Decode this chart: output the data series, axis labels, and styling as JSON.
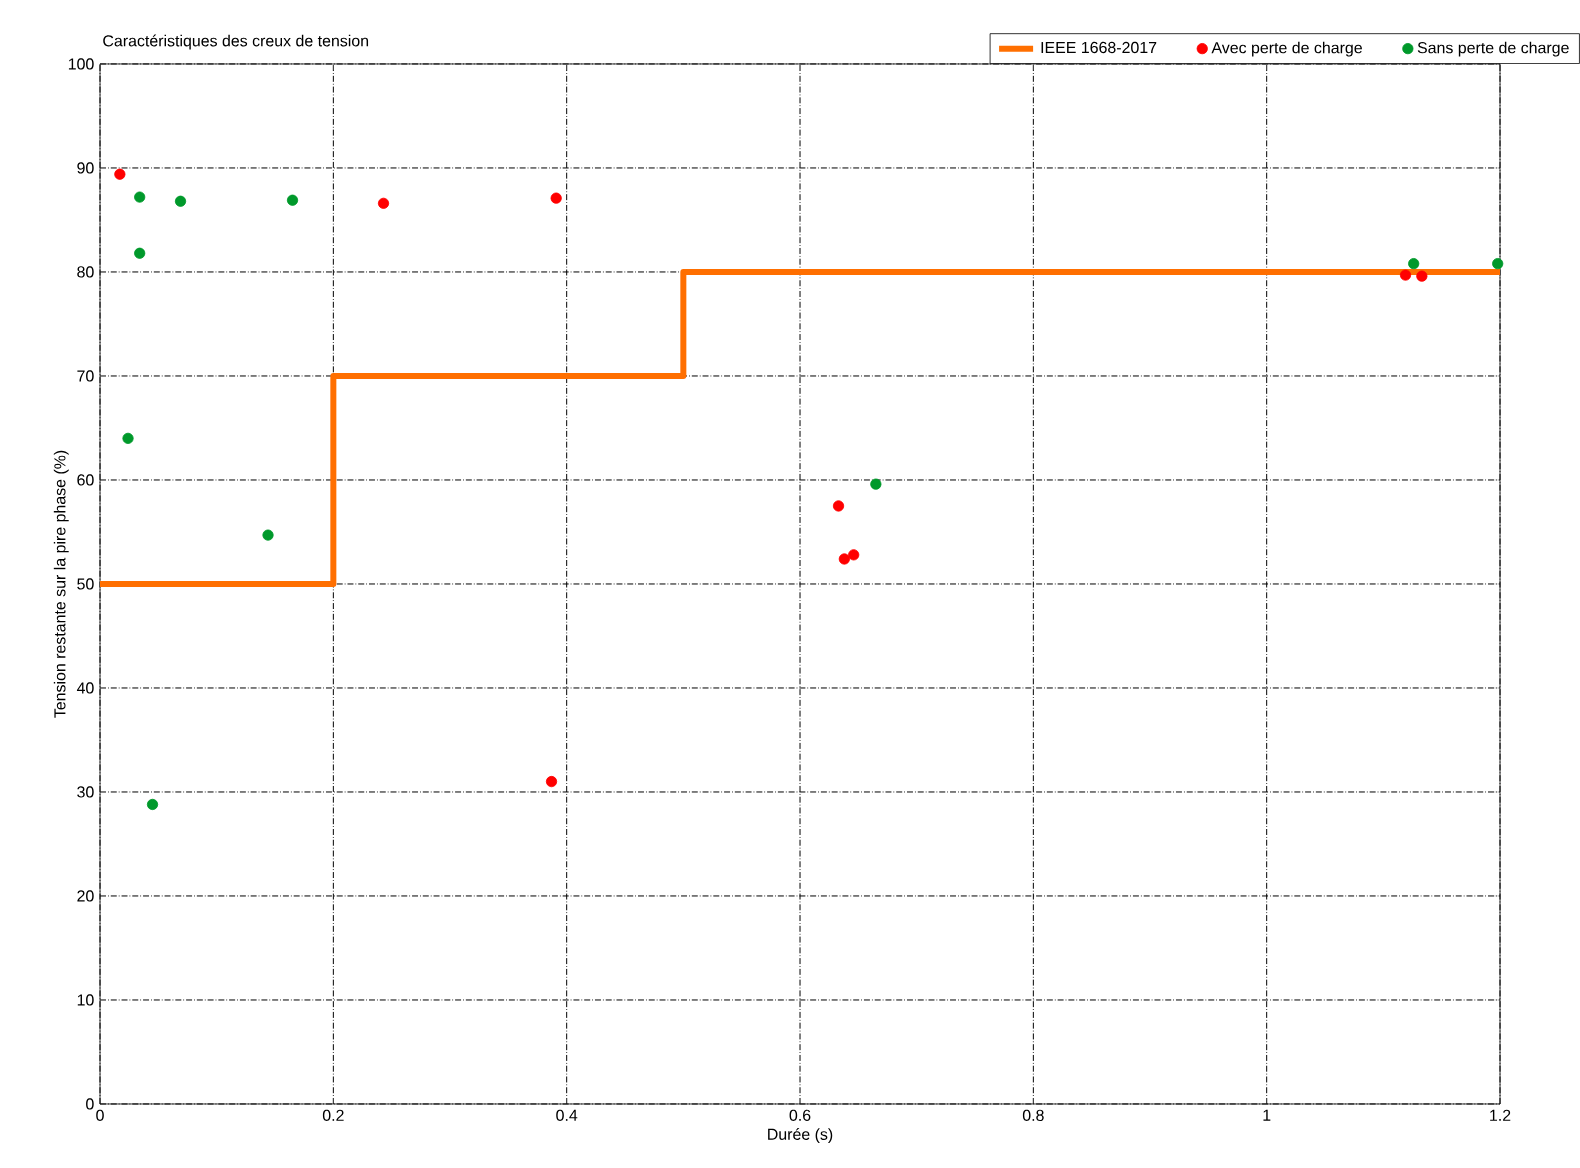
{
  "chart_data": {
    "type": "scatter",
    "title": "Caractéristiques des creux de tension",
    "xlabel": "Durée (s)",
    "ylabel": "Tension restante sur la pire phase (%)",
    "xlim": [
      0,
      1.2
    ],
    "ylim": [
      0,
      100
    ],
    "xticks": [
      0,
      0.2,
      0.4,
      0.6,
      0.8,
      1,
      1.2
    ],
    "yticks": [
      0,
      10,
      20,
      30,
      40,
      50,
      60,
      70,
      80,
      90,
      100
    ],
    "grid": true,
    "legend": "top right",
    "series": [
      {
        "name": "IEEE 1668-2017",
        "type": "step",
        "color": "#ff6f00",
        "x": [
          0,
          0.2,
          0.5,
          1.2
        ],
        "values": [
          50,
          70,
          80,
          80
        ]
      },
      {
        "name": "Avec perte de charge",
        "color": "#ff0000",
        "marker": "circle",
        "x": [
          0.017,
          0.243,
          0.391,
          0.387,
          0.633,
          0.638,
          0.646,
          1.119,
          1.133
        ],
        "values": [
          89.4,
          86.6,
          87.1,
          31,
          57.5,
          52.4,
          52.8,
          79.7,
          79.6
        ]
      },
      {
        "name": "Sans perte de charge",
        "color": "#00992b",
        "marker": "circle",
        "x": [
          0.034,
          0.069,
          0.165,
          0.034,
          0.024,
          0.144,
          0.045,
          0.665,
          1.126,
          1.198
        ],
        "values": [
          87.2,
          86.8,
          86.9,
          81.8,
          64,
          54.7,
          28.8,
          59.6,
          80.8,
          80.8
        ]
      }
    ]
  }
}
